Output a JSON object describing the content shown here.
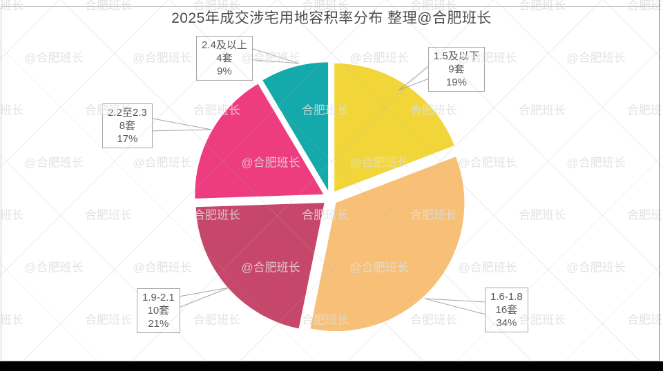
{
  "title": "2025年成交涉宅用地容积率分布  整理@合肥班长",
  "watermark": {
    "text_primary": "@合肥班长",
    "text_secondary": "合肥班长"
  },
  "chart_data": {
    "type": "pie",
    "title": "2025年成交涉宅用地容积率分布",
    "credit": "整理@合肥班长",
    "unit": "套",
    "total_count": 47,
    "start_angle_deg": 0,
    "direction": "clockwise",
    "exploded": true,
    "grid": false,
    "legend_position": "none",
    "label_style": "callout-boxes",
    "segments": [
      {
        "label": "1.5及以下",
        "count": 9,
        "pct_label": "19%",
        "color": "#F2D639"
      },
      {
        "label": "1.6-1.8",
        "count": 16,
        "pct_label": "34%",
        "color": "#F8C076"
      },
      {
        "label": "1.9-2.1",
        "count": 10,
        "pct_label": "21%",
        "color": "#C7476B"
      },
      {
        "label": "2.2至2.3",
        "count": 8,
        "pct_label": "17%",
        "color": "#EE3C80"
      },
      {
        "label": "2.4及以上",
        "count": 4,
        "pct_label": "9%",
        "color": "#14A9AB"
      }
    ]
  }
}
